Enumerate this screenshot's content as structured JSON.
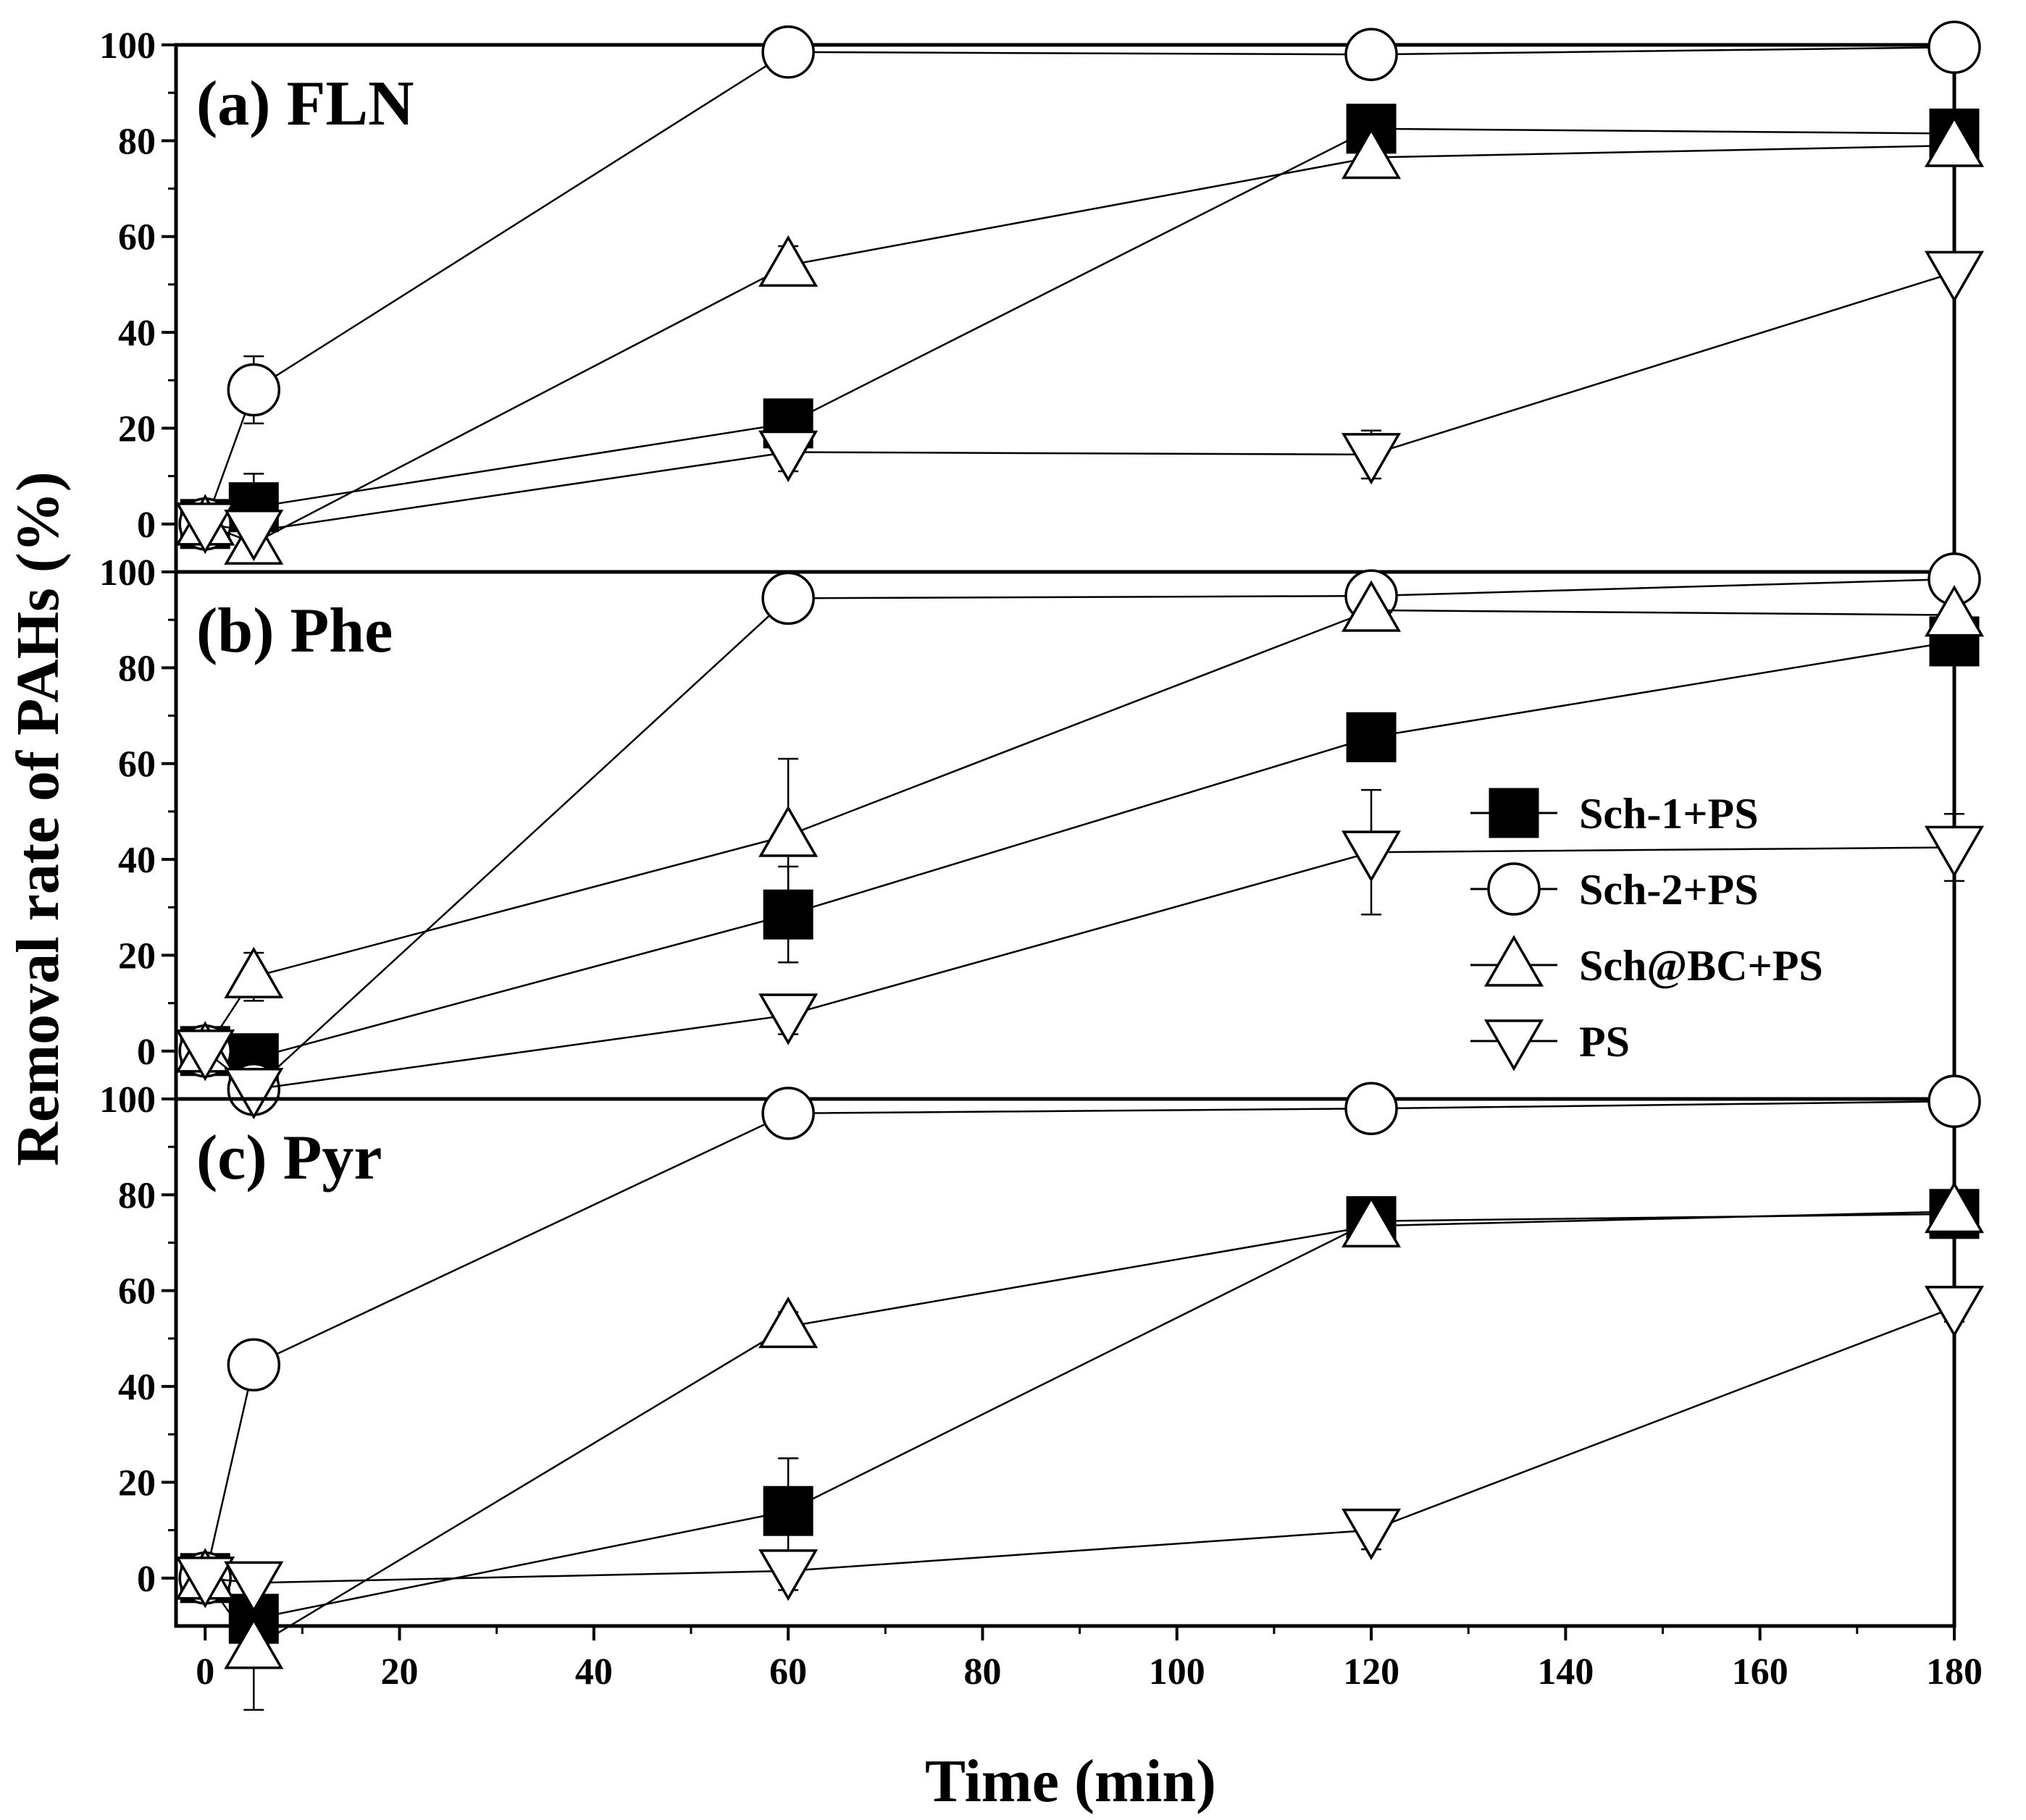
{
  "chart_data": {
    "type": "line",
    "xlabel": "Time (min)",
    "ylabel": "Removal rate of PAHs (%)",
    "xlim": [
      -3,
      180
    ],
    "ylim": [
      -10,
      100
    ],
    "x_ticks": [
      0,
      20,
      40,
      60,
      80,
      100,
      120,
      140,
      160,
      180
    ],
    "y_ticks": [
      0,
      20,
      40,
      60,
      80,
      100
    ],
    "x_tick_labels": [
      "0",
      "20",
      "40",
      "60",
      "80",
      "100",
      "120",
      "140",
      "160",
      "180"
    ],
    "y_tick_labels": [
      "0",
      "20",
      "40",
      "60",
      "80",
      "100"
    ],
    "legend_placement": "right (middle panel)",
    "grid": false,
    "x": [
      0,
      5,
      60,
      120,
      180
    ],
    "legend": [
      {
        "name": "Sch-1+PS",
        "marker": "square-filled"
      },
      {
        "name": "Sch-2+PS",
        "marker": "circle-open"
      },
      {
        "name": "Sch@BC+PS",
        "marker": "triangle-up-open"
      },
      {
        "name": "PS",
        "marker": "triangle-down-open"
      }
    ],
    "panels": [
      {
        "title": "(a) FLN",
        "series": [
          {
            "name": "Sch-1+PS",
            "values": [
              0,
              3.5,
              21,
              82.5,
              81.5
            ],
            "errors": [
              0,
              7,
              5,
              1,
              1
            ]
          },
          {
            "name": "Sch-2+PS",
            "values": [
              0,
              28,
              98.5,
              98,
              99.5
            ],
            "errors": [
              0,
              7,
              2,
              1,
              1
            ]
          },
          {
            "name": "Sch@BC+PS",
            "values": [
              0,
              -4,
              54,
              76.5,
              79
            ],
            "errors": [
              0,
              3,
              4,
              4,
              1
            ]
          },
          {
            "name": "PS",
            "values": [
              0,
              -1.5,
              15,
              14.5,
              52.5
            ],
            "errors": [
              0,
              2,
              4,
              5,
              2
            ]
          }
        ]
      },
      {
        "title": "(b) Phe",
        "series": [
          {
            "name": "Sch-1+PS",
            "values": [
              0,
              -1.5,
              28.5,
              65.5,
              85.5
            ],
            "errors": [
              0,
              1,
              10,
              0,
              0
            ]
          },
          {
            "name": "Sch-2+PS",
            "values": [
              0,
              -8,
              94.5,
              95,
              98.5
            ],
            "errors": [
              0,
              1,
              2,
              1,
              1
            ]
          },
          {
            "name": "Sch@BC+PS",
            "values": [
              0,
              15.5,
              45,
              92,
              91
            ],
            "errors": [
              0,
              5,
              16,
              2,
              1
            ]
          },
          {
            "name": "PS",
            "values": [
              0,
              -8,
              7.5,
              41.5,
              42.5
            ],
            "errors": [
              0,
              1,
              4,
              13,
              7
            ]
          }
        ]
      },
      {
        "title": "(c) Pyr",
        "series": [
          {
            "name": "Sch-1+PS",
            "values": [
              0,
              -8.5,
              14,
              74.5,
              76
            ],
            "errors": [
              0,
              1,
              11,
              1,
              1
            ]
          },
          {
            "name": "Sch-2+PS",
            "values": [
              0,
              44.5,
              97,
              98,
              99.5
            ],
            "errors": [
              0,
              5,
              1,
              1,
              1
            ]
          },
          {
            "name": "Sch@BC+PS",
            "values": [
              0,
              -14.5,
              52.5,
              73.5,
              76.5
            ],
            "errors": [
              0,
              13,
              3,
              4,
              2
            ]
          },
          {
            "name": "PS",
            "values": [
              0,
              -1,
              1.5,
              10,
              56.5
            ],
            "errors": [
              0,
              4,
              4,
              4,
              3
            ]
          }
        ]
      }
    ]
  }
}
